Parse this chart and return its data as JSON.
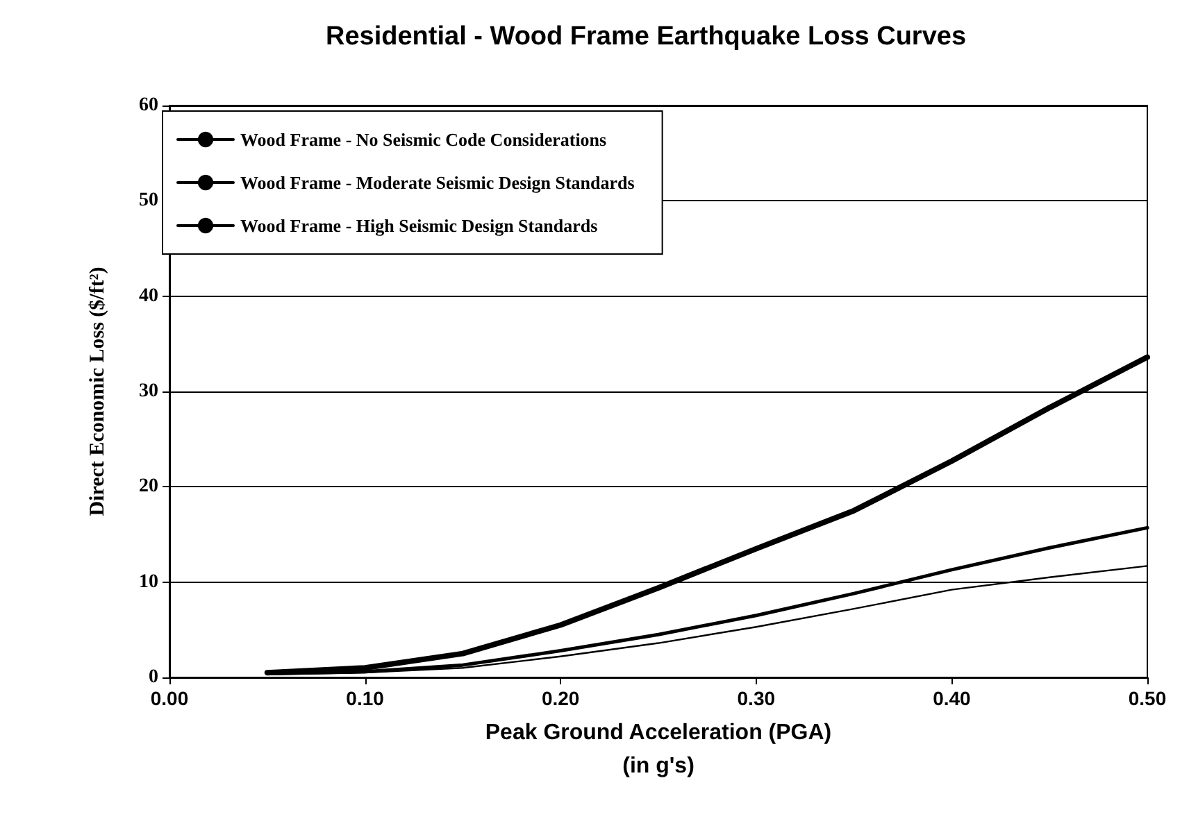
{
  "chart_data": {
    "type": "line",
    "title": "Residential - Wood Frame Earthquake Loss Curves",
    "xlabel": "Peak Ground Acceleration (PGA)\n(in g's)",
    "ylabel": "Direct Economic Loss ($/ft²)",
    "x": [
      0.05,
      0.1,
      0.15,
      0.2,
      0.25,
      0.3,
      0.35,
      0.4,
      0.45,
      0.5
    ],
    "series": [
      {
        "name": "Wood Frame - No Seismic Code Considerations",
        "color": "#000000",
        "values": [
          0.5,
          1,
          2.5,
          5.5,
          9.4,
          13.5,
          17.5,
          22.7,
          28.3,
          33.6
        ]
      },
      {
        "name": "Wood Frame - Moderate Seismic Design Standards",
        "color": "#000000",
        "values": [
          0.4,
          0.6,
          1.3,
          2.8,
          4.5,
          6.5,
          8.8,
          11.3,
          13.6,
          15.7
        ]
      },
      {
        "name": "Wood Frame - High Seismic Design Standards",
        "color": "#000000",
        "values": [
          0.3,
          0.5,
          1,
          2.2,
          3.6,
          5.3,
          7.2,
          9.2,
          10.5,
          11.7
        ]
      }
    ],
    "xlim": [
      0,
      0.5
    ],
    "xticks": [
      {
        "value": 0,
        "label": "0.00"
      },
      {
        "value": 0.1,
        "label": "0.10"
      },
      {
        "value": 0.2,
        "label": "0.20"
      },
      {
        "value": 0.3,
        "label": "0.30"
      },
      {
        "value": 0.4,
        "label": "0.40"
      },
      {
        "value": 0.5,
        "label": "0.50"
      }
    ],
    "ylim": [
      0,
      60
    ],
    "yticks": [
      0,
      10,
      20,
      30,
      40,
      50,
      60
    ],
    "grid": "y",
    "legend": "top left",
    "marker": "none",
    "line_style": "solid"
  }
}
